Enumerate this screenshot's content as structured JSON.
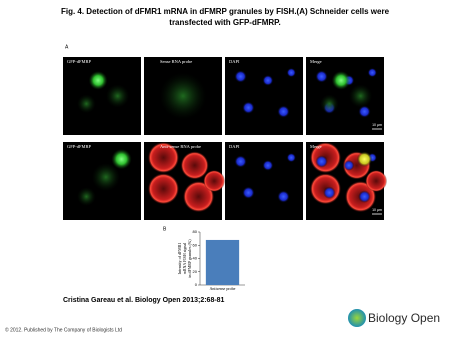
{
  "title": [
    "Fig. 4. Detection of dFMR1 mRNA in dFMRP granules by FISH.(A) Schneider cells were",
    "transfected with GFP-dFMRP."
  ],
  "panel_a": {
    "label": "A",
    "panels": [
      [
        "GFP-dFMRP",
        "Sense RNA probe",
        "DAPI",
        "Merge"
      ],
      [
        "GFP-dFMRP",
        "Anti-sense RNA probe",
        "DAPI",
        "Merge"
      ]
    ],
    "scale_bars": [
      "10 µm",
      "10 µm"
    ]
  },
  "panel_b": {
    "label": "B"
  },
  "chart_data": {
    "type": "bar",
    "y_label": [
      "Intensity of dFMR1",
      "mRNA FISH signal",
      "in dFMRP granules (%)"
    ],
    "categories": [
      "Antisense probe"
    ],
    "values": [
      68
    ],
    "color": "#4a7ebb",
    "ylim": [
      0,
      80
    ],
    "yticks": [
      0,
      20,
      40,
      60,
      80
    ]
  },
  "caption": "Cristina Gareau et al. Biology Open 2013;2:68-81",
  "footer": "© 2012. Published by The Company of Biologists Ltd",
  "logo": "Biology Open"
}
